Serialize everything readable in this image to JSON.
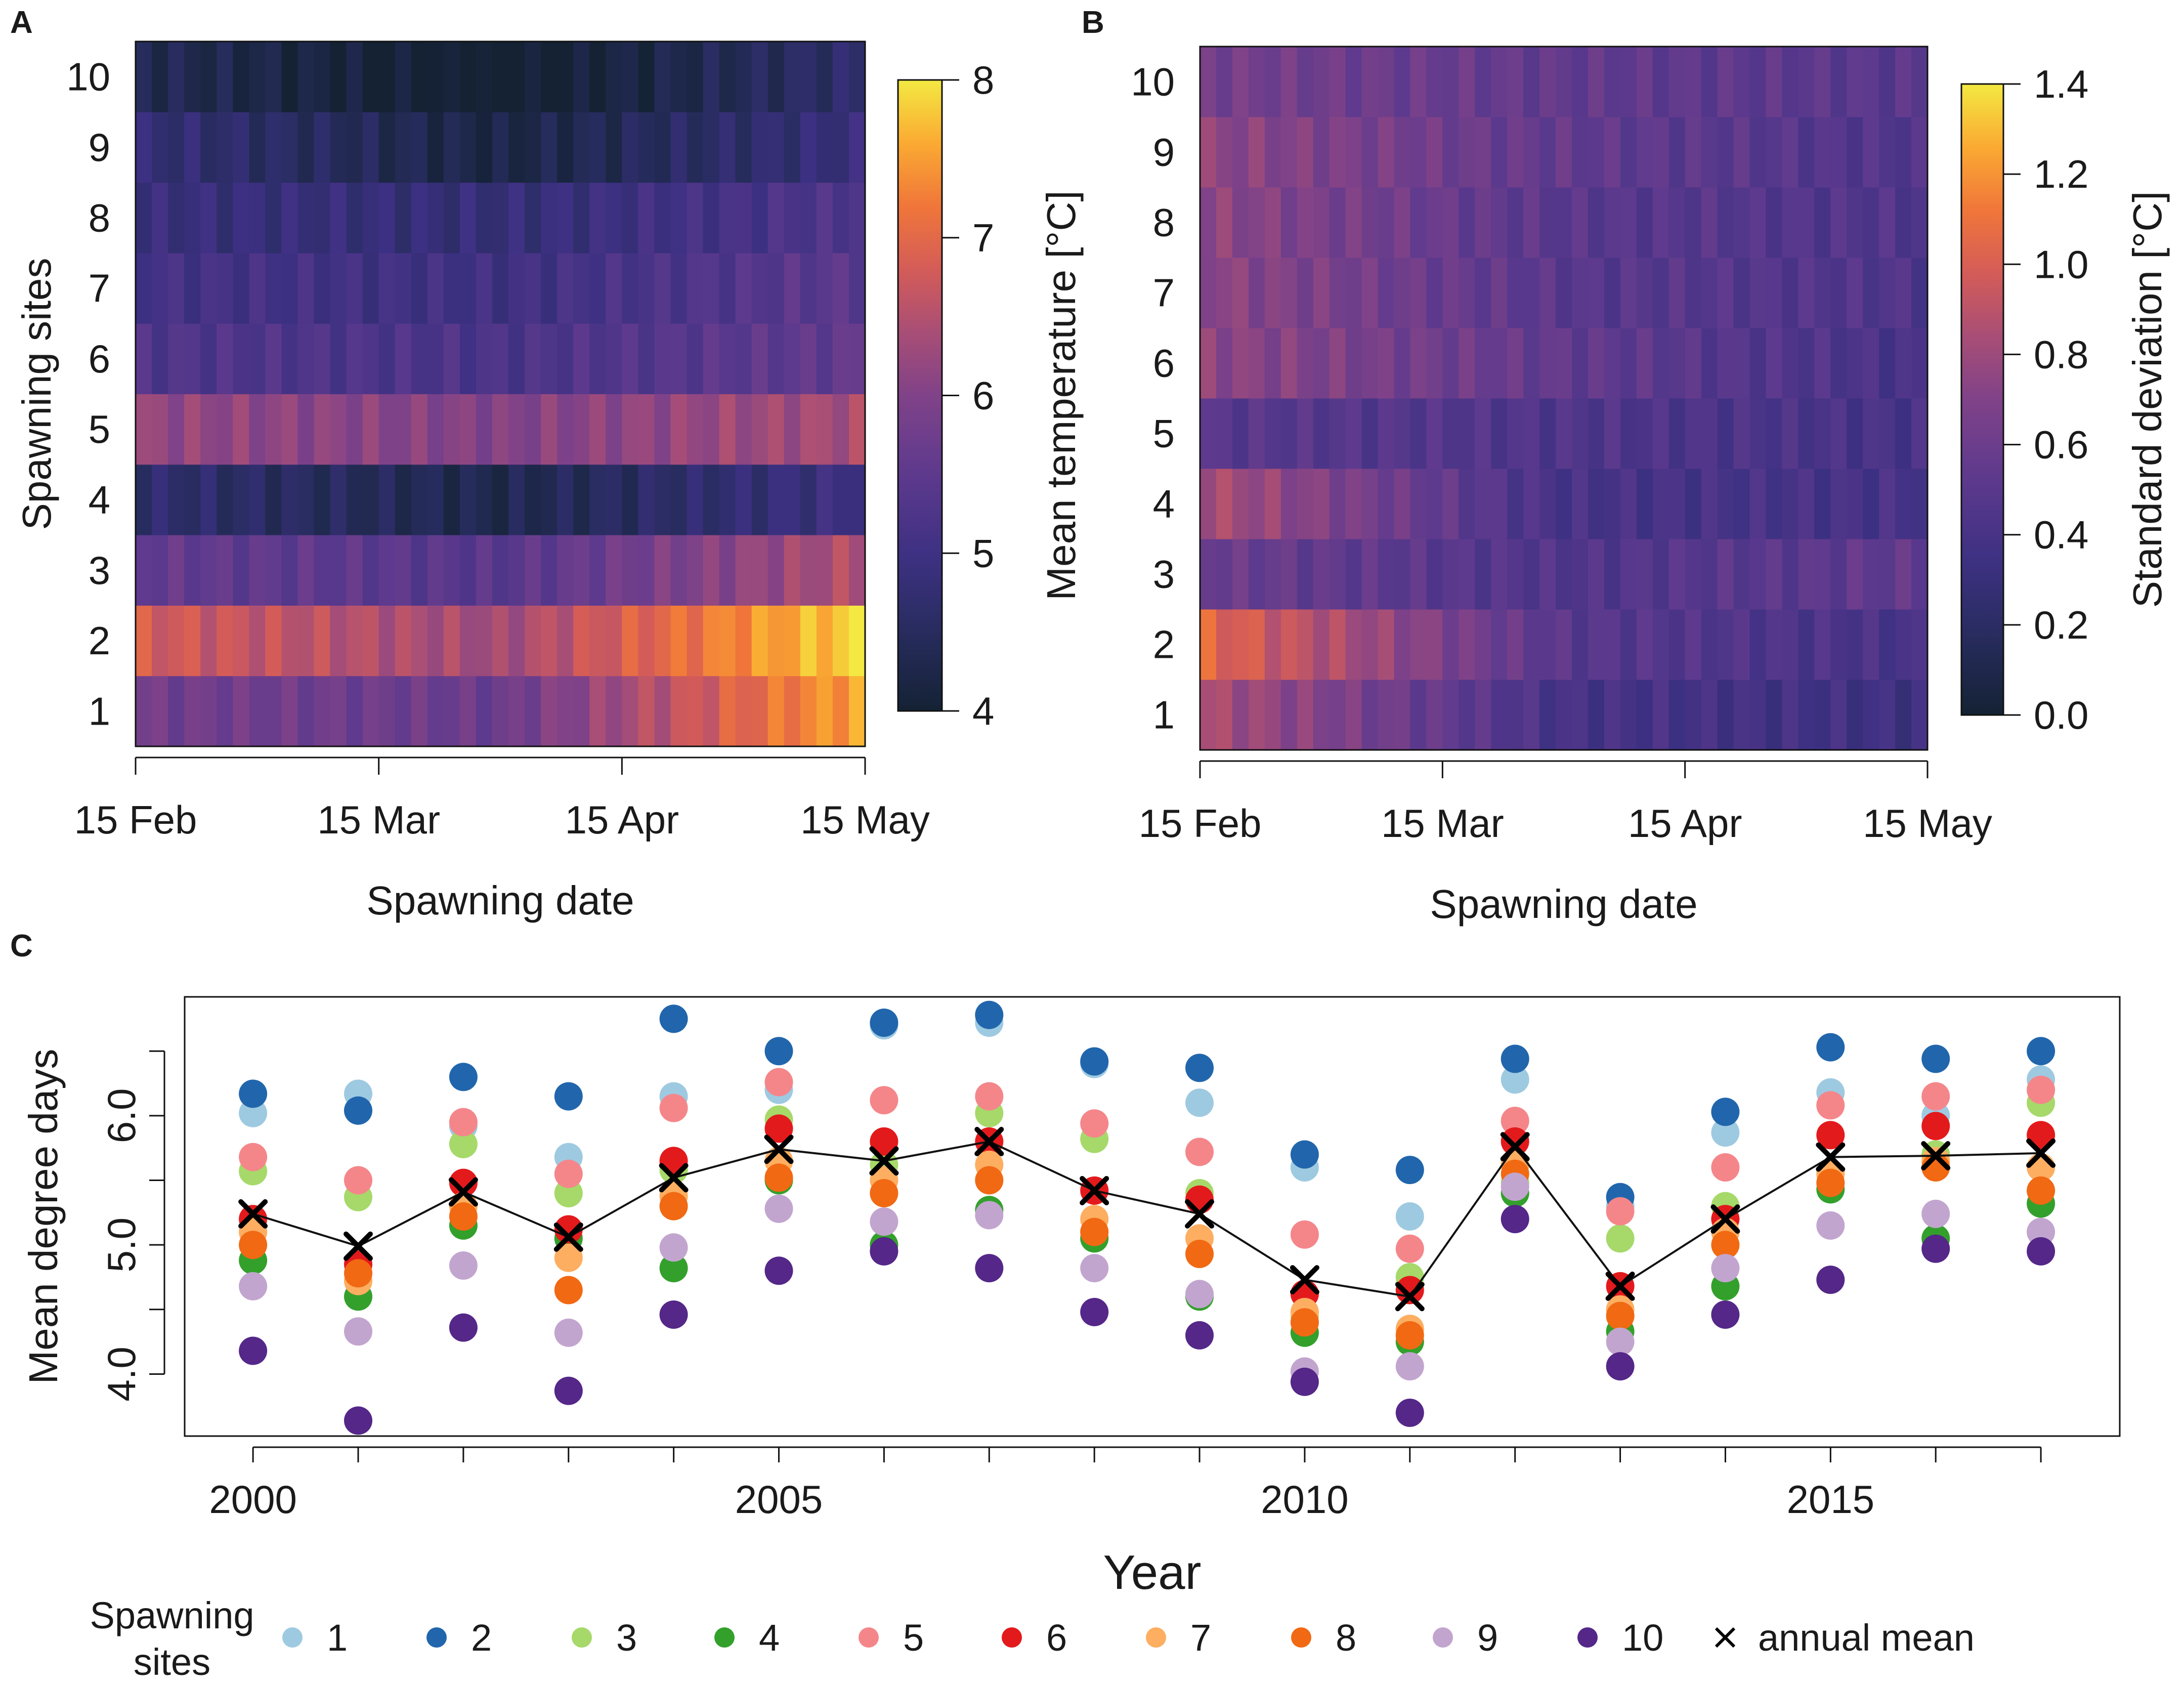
{
  "figure_labels": {
    "a": "A",
    "b": "B",
    "c": "C"
  },
  "chart_data": [
    {
      "type": "heatmap",
      "panel": "A",
      "xlabel": "Spawning date",
      "ylabel": "Spawning sites",
      "x_ticks": [
        "15 Feb",
        "15 Mar",
        "15 Apr",
        "15 May"
      ],
      "y_ticks": [
        "1",
        "2",
        "3",
        "4",
        "5",
        "6",
        "7",
        "8",
        "9",
        "10"
      ],
      "colorbar": {
        "label": "Mean temperature [°C]",
        "range": [
          4,
          8
        ],
        "ticks": [
          "4",
          "5",
          "6",
          "7",
          "8"
        ]
      },
      "site_profiles": [
        {
          "site": "1",
          "start": 5.8,
          "mid": 5.7,
          "end": 7.6
        },
        {
          "site": "2",
          "start": 6.8,
          "mid": 6.3,
          "end": 7.9
        },
        {
          "site": "3",
          "start": 5.6,
          "mid": 5.4,
          "end": 6.5
        },
        {
          "site": "4",
          "start": 4.7,
          "mid": 4.3,
          "end": 5.0
        },
        {
          "site": "5",
          "start": 6.2,
          "mid": 6.0,
          "end": 6.4
        },
        {
          "site": "6",
          "start": 5.3,
          "mid": 5.2,
          "end": 5.6
        },
        {
          "site": "7",
          "start": 5.1,
          "mid": 5.0,
          "end": 5.5
        },
        {
          "site": "8",
          "start": 4.9,
          "mid": 4.8,
          "end": 5.3
        },
        {
          "site": "9",
          "start": 4.8,
          "mid": 4.2,
          "end": 4.9
        },
        {
          "site": "10",
          "start": 4.4,
          "mid": 3.9,
          "end": 4.7
        }
      ]
    },
    {
      "type": "heatmap",
      "panel": "B",
      "xlabel": "Spawning date",
      "ylabel": "",
      "x_ticks": [
        "15 Feb",
        "15 Mar",
        "15 Apr",
        "15 May"
      ],
      "y_ticks": [
        "1",
        "2",
        "3",
        "4",
        "5",
        "6",
        "7",
        "8",
        "9",
        "10"
      ],
      "colorbar": {
        "label": "Standard deviation [°C]",
        "range": [
          0,
          1.4
        ],
        "ticks": [
          "0.0",
          "0.2",
          "0.4",
          "0.6",
          "0.8",
          "1.0",
          "1.2",
          "1.4"
        ]
      },
      "site_profiles": [
        {
          "site": "1",
          "start": 0.85,
          "mid": 0.4,
          "end": 0.35
        },
        {
          "site": "2",
          "start": 1.05,
          "mid": 0.5,
          "end": 0.4
        },
        {
          "site": "3",
          "start": 0.6,
          "mid": 0.45,
          "end": 0.55
        },
        {
          "site": "4",
          "start": 0.85,
          "mid": 0.4,
          "end": 0.4
        },
        {
          "site": "5",
          "start": 0.5,
          "mid": 0.45,
          "end": 0.4
        },
        {
          "site": "6",
          "start": 0.75,
          "mid": 0.55,
          "end": 0.4
        },
        {
          "site": "7",
          "start": 0.75,
          "mid": 0.5,
          "end": 0.45
        },
        {
          "site": "8",
          "start": 0.75,
          "mid": 0.5,
          "end": 0.45
        },
        {
          "site": "9",
          "start": 0.75,
          "mid": 0.55,
          "end": 0.45
        },
        {
          "site": "10",
          "start": 0.65,
          "mid": 0.55,
          "end": 0.5
        }
      ]
    },
    {
      "type": "scatter",
      "panel": "C",
      "xlabel": "Year",
      "ylabel": "Mean degree days",
      "x_ticks": [
        "2000",
        "2005",
        "2010",
        "2015"
      ],
      "y_ticks": [
        "4.0",
        "5.0",
        "6.0"
      ],
      "xlim": [
        1999.35,
        2017.75
      ],
      "ylim": [
        3.52,
        6.92
      ],
      "years": [
        2000,
        2001,
        2002,
        2003,
        2004,
        2005,
        2006,
        2007,
        2008,
        2009,
        2010,
        2011,
        2012,
        2013,
        2014,
        2015,
        2016,
        2017
      ],
      "series": [
        {
          "name": "1",
          "color": "#9ecae1",
          "values": [
            6.02,
            6.17,
            5.92,
            5.68,
            6.15,
            6.2,
            6.7,
            6.72,
            6.4,
            6.1,
            5.6,
            5.22,
            6.28,
            5.3,
            5.87,
            6.18,
            6.0,
            6.28
          ]
        },
        {
          "name": "2",
          "color": "#2166ac",
          "values": [
            6.17,
            6.04,
            6.3,
            6.15,
            6.75,
            6.5,
            6.72,
            6.78,
            6.42,
            6.37,
            5.7,
            5.58,
            6.44,
            5.37,
            6.03,
            6.53,
            6.44,
            6.5
          ]
        },
        {
          "name": "3",
          "color": "#a6d96a",
          "values": [
            5.57,
            5.37,
            5.78,
            5.4,
            5.58,
            5.97,
            5.62,
            6.02,
            5.82,
            5.4,
            4.45,
            4.75,
            5.48,
            5.05,
            5.3,
            5.55,
            5.7,
            6.1
          ]
        },
        {
          "name": "4",
          "color": "#33a02c",
          "values": [
            4.88,
            4.6,
            5.15,
            5.05,
            4.82,
            5.5,
            5.0,
            5.27,
            5.05,
            4.6,
            4.32,
            4.25,
            5.4,
            4.33,
            4.68,
            5.43,
            5.05,
            5.32
          ]
        },
        {
          "name": "5",
          "color": "#f4868a",
          "values": [
            5.68,
            5.5,
            5.95,
            5.55,
            6.06,
            6.26,
            6.12,
            6.15,
            5.94,
            5.72,
            5.08,
            4.97,
            5.96,
            5.26,
            5.6,
            6.08,
            6.15,
            6.2
          ]
        },
        {
          "name": "6",
          "color": "#e31a1c",
          "values": [
            5.2,
            4.85,
            5.48,
            5.12,
            5.65,
            5.9,
            5.8,
            5.8,
            5.42,
            5.35,
            4.62,
            4.65,
            5.8,
            4.68,
            5.2,
            5.85,
            5.92,
            5.85
          ]
        },
        {
          "name": "7",
          "color": "#fdae61",
          "values": [
            5.1,
            4.72,
            5.3,
            4.9,
            5.38,
            5.65,
            5.5,
            5.62,
            5.2,
            5.05,
            4.48,
            4.35,
            5.62,
            4.5,
            5.1,
            5.55,
            5.65,
            5.6
          ]
        },
        {
          "name": "8",
          "color": "#f16913",
          "values": [
            5.0,
            4.78,
            5.22,
            4.65,
            5.3,
            5.52,
            5.4,
            5.5,
            5.1,
            4.93,
            4.4,
            4.3,
            5.55,
            4.45,
            5.0,
            5.48,
            5.6,
            5.42
          ]
        },
        {
          "name": "9",
          "color": "#c2a5cf",
          "values": [
            4.68,
            4.33,
            4.84,
            4.32,
            4.98,
            5.28,
            5.18,
            5.23,
            4.82,
            4.62,
            4.02,
            4.06,
            5.45,
            4.25,
            4.82,
            5.15,
            5.24,
            5.1
          ]
        },
        {
          "name": "10",
          "color": "#542788",
          "values": [
            4.18,
            3.64,
            4.36,
            3.87,
            4.46,
            4.8,
            4.95,
            4.82,
            4.48,
            4.3,
            3.94,
            3.7,
            5.2,
            4.06,
            4.46,
            4.73,
            4.97,
            4.95
          ]
        },
        {
          "name": "annual mean",
          "color": "#000000",
          "marker": "x",
          "values": [
            5.24,
            4.99,
            5.41,
            5.06,
            5.52,
            5.74,
            5.65,
            5.8,
            5.42,
            5.24,
            4.73,
            4.6,
            5.76,
            4.68,
            5.2,
            5.68,
            5.69,
            5.71
          ]
        }
      ],
      "legend": {
        "title": "Spawning sites",
        "position": "bottom"
      }
    }
  ]
}
